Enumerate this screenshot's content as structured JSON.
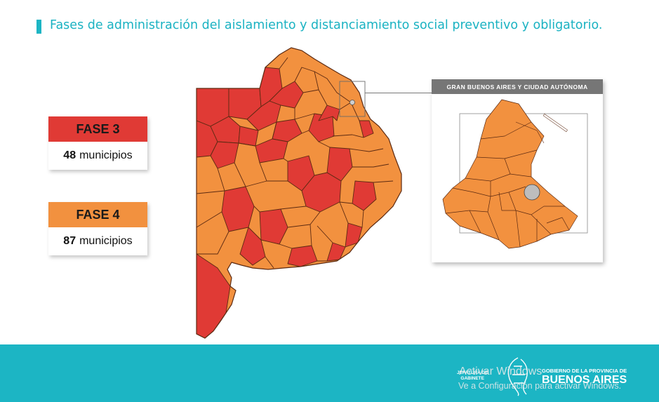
{
  "title": "Fases de administración del aislamiento y distanciamiento social preventivo y obligatorio.",
  "legend": [
    {
      "phase": "FASE 3",
      "count": "48",
      "unit": "municipios",
      "color": "#e03a35"
    },
    {
      "phase": "FASE 4",
      "count": "87",
      "unit": "municipios",
      "color": "#f2913f"
    }
  ],
  "inset": {
    "title": "GRAN BUENOS AIRES Y CIUDAD AUTÓNOMA"
  },
  "footer": {
    "left_logo_line1": "JEFATURA DE",
    "left_logo_line2": "GABINETE",
    "gov_line": "GOBIERNO DE LA PROVINCIA DE",
    "gov_name": "BUENOS AIRES"
  },
  "watermark": {
    "line1": "Activar Windows",
    "line2": "Ve a Configuración para activar Windows."
  },
  "colors": {
    "accent": "#1cb5c4",
    "phase3": "#e03a35",
    "phase4": "#f2913f",
    "border": "#5c2a12"
  }
}
